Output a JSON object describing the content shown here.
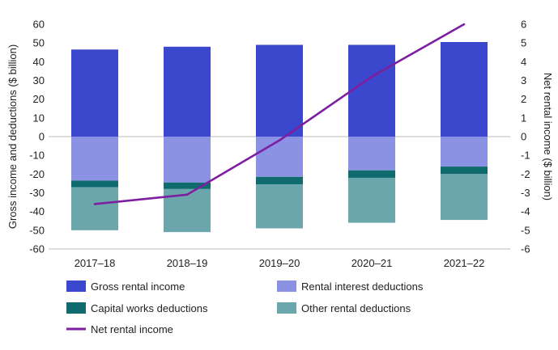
{
  "chart_data": {
    "type": "bar",
    "stacked": true,
    "categories": [
      "2017–18",
      "2018–19",
      "2019–20",
      "2020–21",
      "2021–22"
    ],
    "series": [
      {
        "name": "Gross rental income",
        "axis": "left",
        "color": "#3b47cc",
        "values": [
          46.5,
          48,
          49,
          49,
          50.5
        ]
      },
      {
        "name": "Rental interest deductions",
        "axis": "left",
        "color": "#8c92e3",
        "values": [
          -23.5,
          -24.5,
          -21.5,
          -18,
          -16
        ]
      },
      {
        "name": "Capital works deductions",
        "axis": "left",
        "color": "#0f6b6d",
        "values": [
          -3.5,
          -3.5,
          -4,
          -4,
          -4
        ]
      },
      {
        "name": "Other rental deductions",
        "axis": "left",
        "color": "#6aa6ab",
        "values": [
          -23,
          -23,
          -23.5,
          -24,
          -24.5
        ]
      },
      {
        "name": "Net rental income",
        "type": "line",
        "axis": "right",
        "color": "#7d1fa0",
        "values": [
          -3.6,
          -3.1,
          -0.2,
          3.2,
          6.0
        ]
      }
    ],
    "left_axis": {
      "label": "Gross income and deductions ($ billion)",
      "ylim": [
        -60,
        60
      ],
      "ticks": [
        "60",
        "50",
        "40",
        "30",
        "20",
        "10",
        "0",
        "-10",
        "-20",
        "-30",
        "-40",
        "-50",
        "-60"
      ]
    },
    "right_axis": {
      "label": "Net rental income ($ billion)",
      "ylim": [
        -6,
        6
      ],
      "ticks": [
        "6",
        "5",
        "4",
        "3",
        "2",
        "1",
        "0",
        "-1",
        "-2",
        "-3",
        "-4",
        "-5",
        "-6"
      ]
    },
    "legend": [
      {
        "label": "Gross rental income",
        "kind": "box",
        "color": "#3b47cc"
      },
      {
        "label": "Rental interest deductions",
        "kind": "box",
        "color": "#8c92e3"
      },
      {
        "label": "Capital works deductions",
        "kind": "box",
        "color": "#0f6b6d"
      },
      {
        "label": "Other rental deductions",
        "kind": "box",
        "color": "#6aa6ab"
      },
      {
        "label": "Net rental income",
        "kind": "line",
        "color": "#7d1fa0"
      }
    ]
  }
}
